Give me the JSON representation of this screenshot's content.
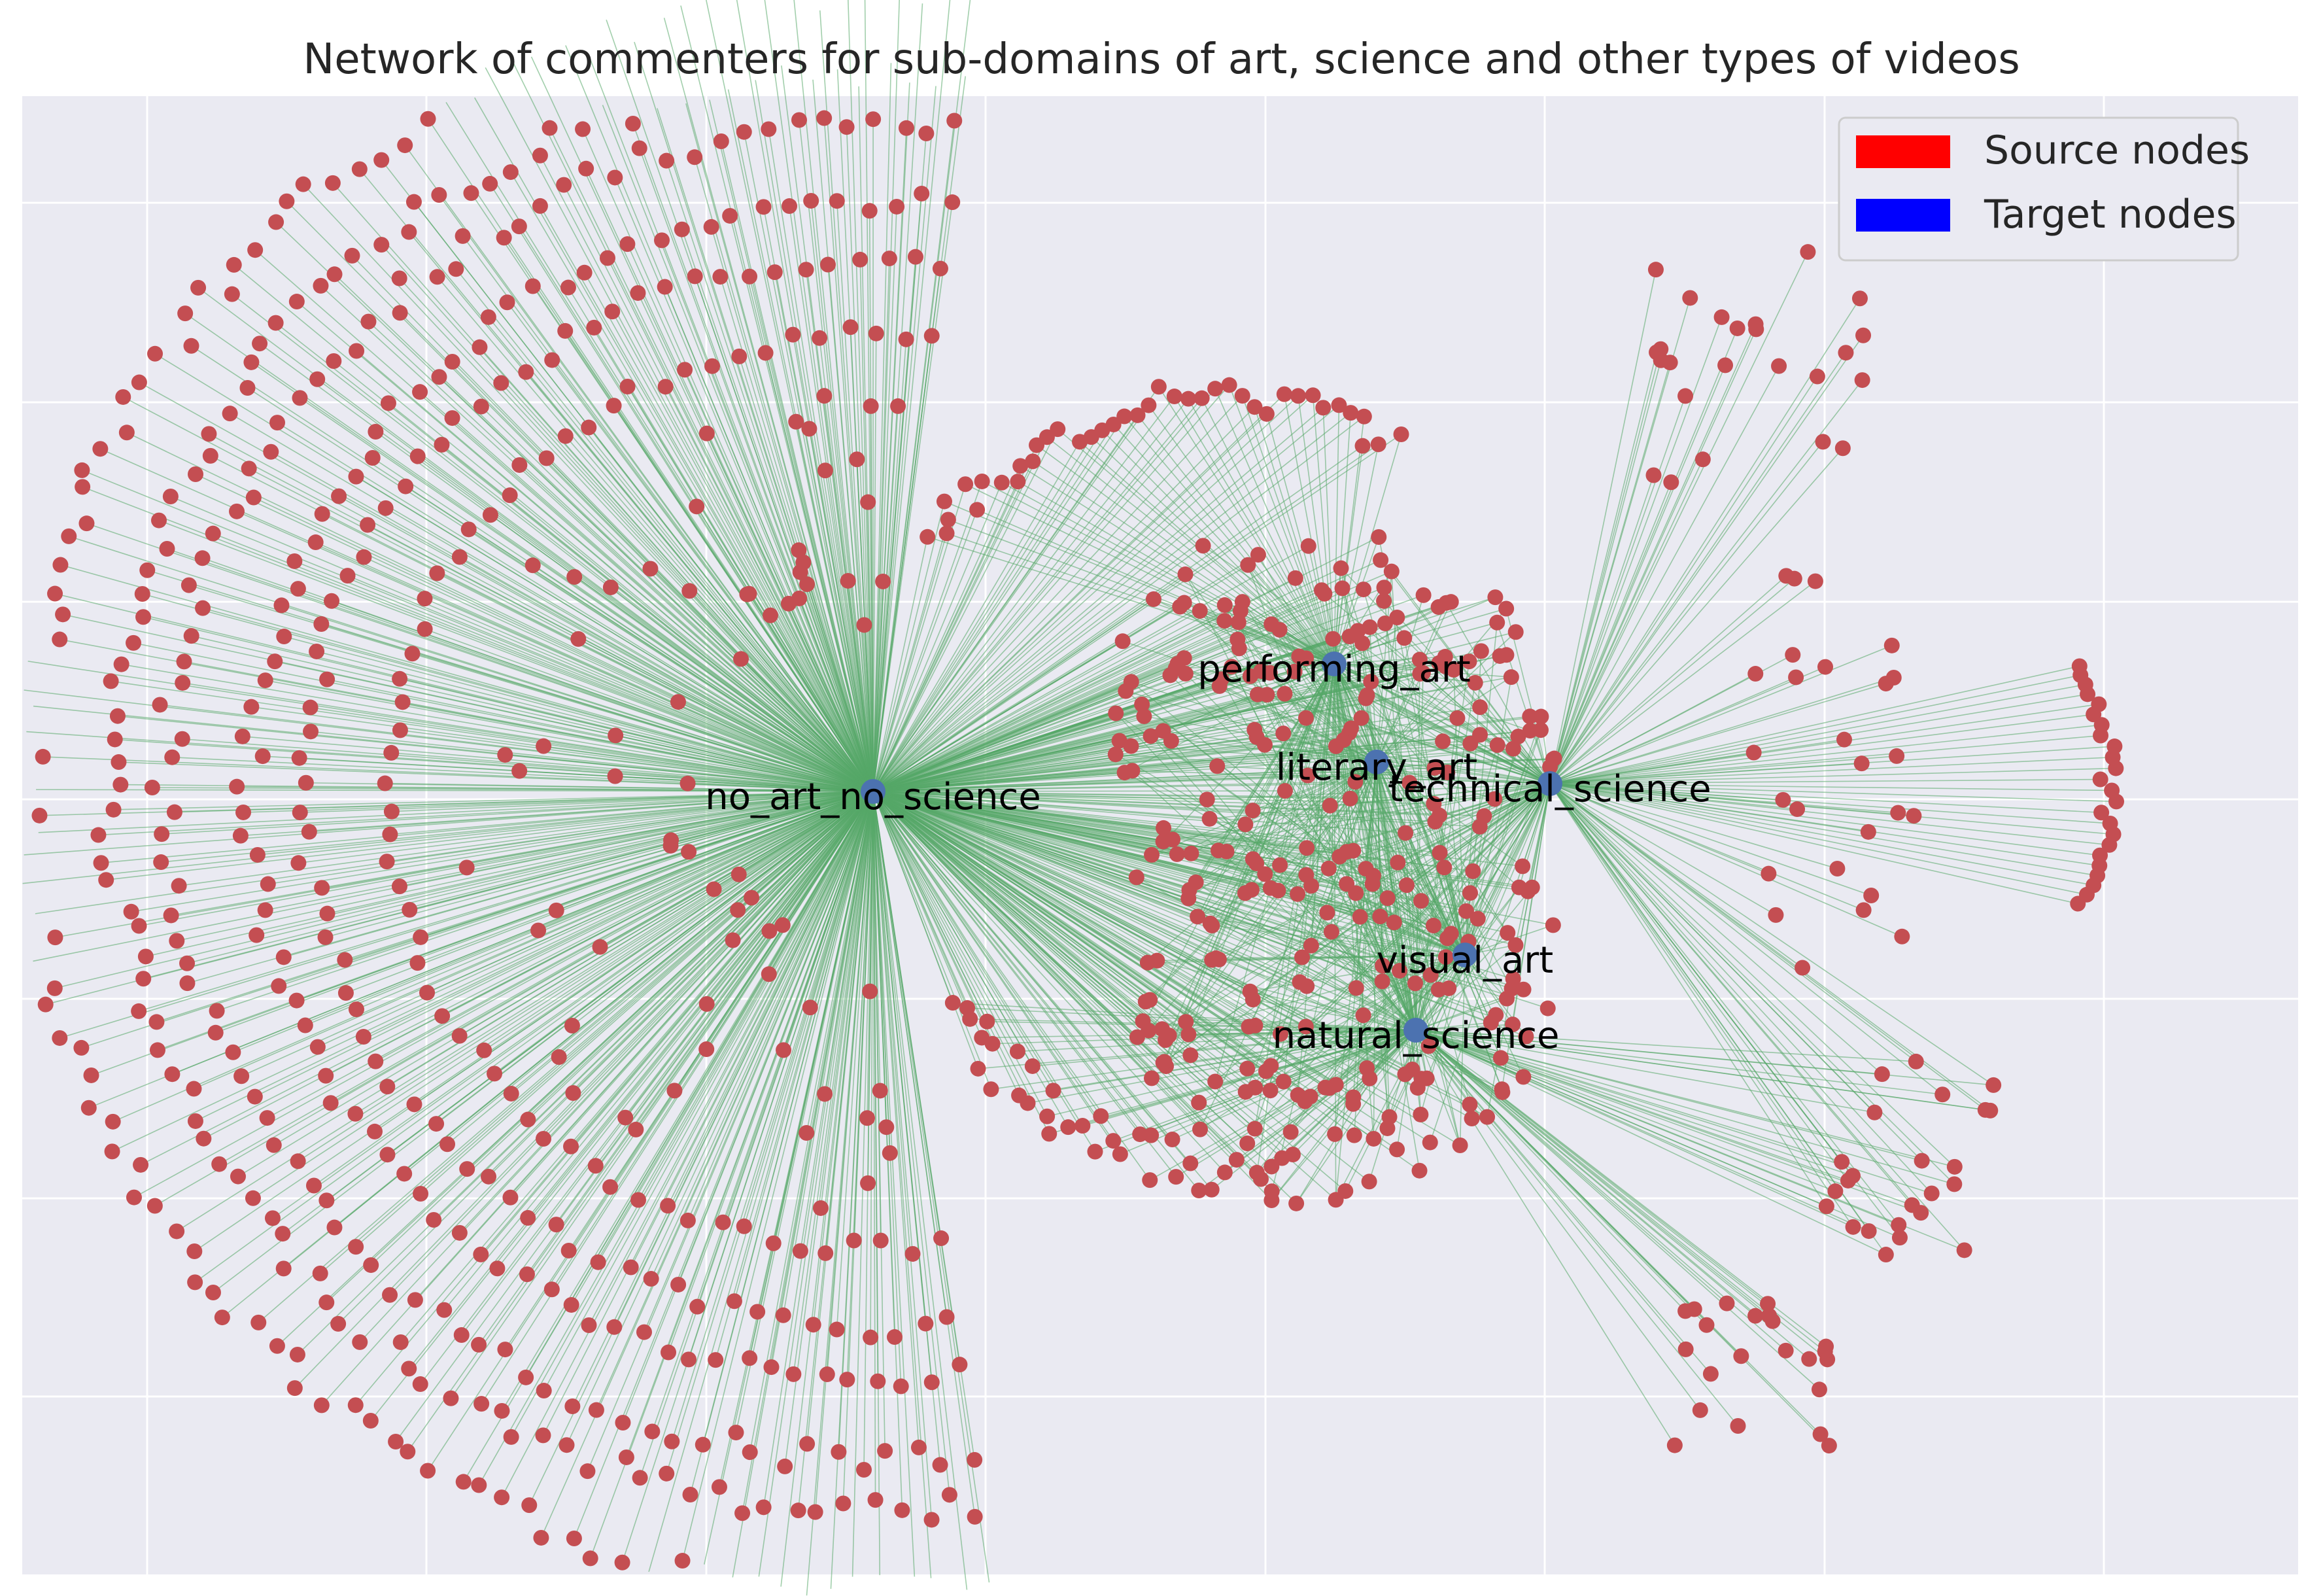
{
  "title": "Network of commenters for sub-domains of art, science and other types of videos",
  "legend": {
    "position": "top-right",
    "items": [
      {
        "label": "Source nodes",
        "color": "#ff0000"
      },
      {
        "label": "Target nodes",
        "color": "#0000ff"
      }
    ]
  },
  "colors": {
    "plot_background": "#eaeaf2",
    "grid": "#ffffff",
    "source_node": "#c44e52",
    "target_node": "#4c72b0",
    "edge": "#55a868",
    "label": "#000000"
  },
  "grid": true,
  "target_nodes": [
    {
      "id": "no_art_no_science",
      "label": "no_art_no_science"
    },
    {
      "id": "performing_art",
      "label": "performing_art"
    },
    {
      "id": "literary_art",
      "label": "literary_art"
    },
    {
      "id": "technical_science",
      "label": "technical_science"
    },
    {
      "id": "visual_art",
      "label": "visual_art"
    },
    {
      "id": "natural_science",
      "label": "natural_science"
    }
  ]
}
